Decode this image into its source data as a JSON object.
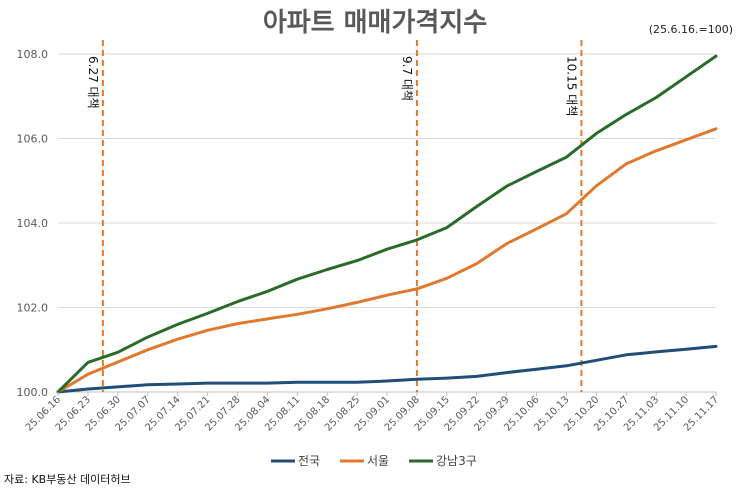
{
  "chart_data": {
    "type": "line",
    "title": "아파트 매매가격지수",
    "note": "(25.6.16.=100)",
    "source": "자료: KB부동산 데이터허브",
    "ylim": [
      100,
      108
    ],
    "yticks": [
      "100.0",
      "102.0",
      "104.0",
      "106.0",
      "108.0"
    ],
    "grid": true,
    "legend_position": "bottom",
    "categories": [
      "25.06.16",
      "25.06.23",
      "25.06.30",
      "25.07.07",
      "25.07.14",
      "25.07.21",
      "25.07.28",
      "25.08.04",
      "25.08.11",
      "25.08.18",
      "25.08.25",
      "25.09.01",
      "25.09.08",
      "25.09.15",
      "25.09.22",
      "25.09.29",
      "25.10.06",
      "25.10.13",
      "25.10.20",
      "25.10.27",
      "25.11.03",
      "25.11.10",
      "25.11.17"
    ],
    "series": [
      {
        "name": "전국",
        "color": "#1f4e79",
        "values": [
          100.0,
          100.07,
          100.12,
          100.17,
          100.19,
          100.21,
          100.21,
          100.21,
          100.23,
          100.23,
          100.23,
          100.26,
          100.3,
          100.33,
          100.37,
          100.46,
          100.54,
          100.62,
          100.75,
          100.88,
          100.95,
          101.01,
          101.08
        ]
      },
      {
        "name": "서울",
        "color": "#e0782d",
        "values": [
          100.0,
          100.42,
          100.71,
          101.0,
          101.25,
          101.46,
          101.62,
          101.73,
          101.84,
          101.97,
          102.12,
          102.29,
          102.44,
          102.69,
          103.04,
          103.51,
          103.86,
          104.22,
          104.88,
          105.4,
          105.71,
          105.97,
          106.23
        ]
      },
      {
        "name": "강남3구",
        "color": "#2a6b2a",
        "values": [
          100.0,
          100.7,
          100.94,
          101.3,
          101.6,
          101.86,
          102.14,
          102.38,
          102.67,
          102.9,
          103.11,
          103.38,
          103.6,
          103.89,
          104.39,
          104.87,
          105.22,
          105.56,
          106.12,
          106.57,
          106.97,
          107.46,
          107.95
        ]
      }
    ],
    "annotations": [
      {
        "label": "6.27 대책",
        "category_index": 1.5
      },
      {
        "label": "9.7 대책",
        "category_index": 12
      },
      {
        "label": "10.15 대책",
        "category_index": 17.5
      }
    ]
  }
}
